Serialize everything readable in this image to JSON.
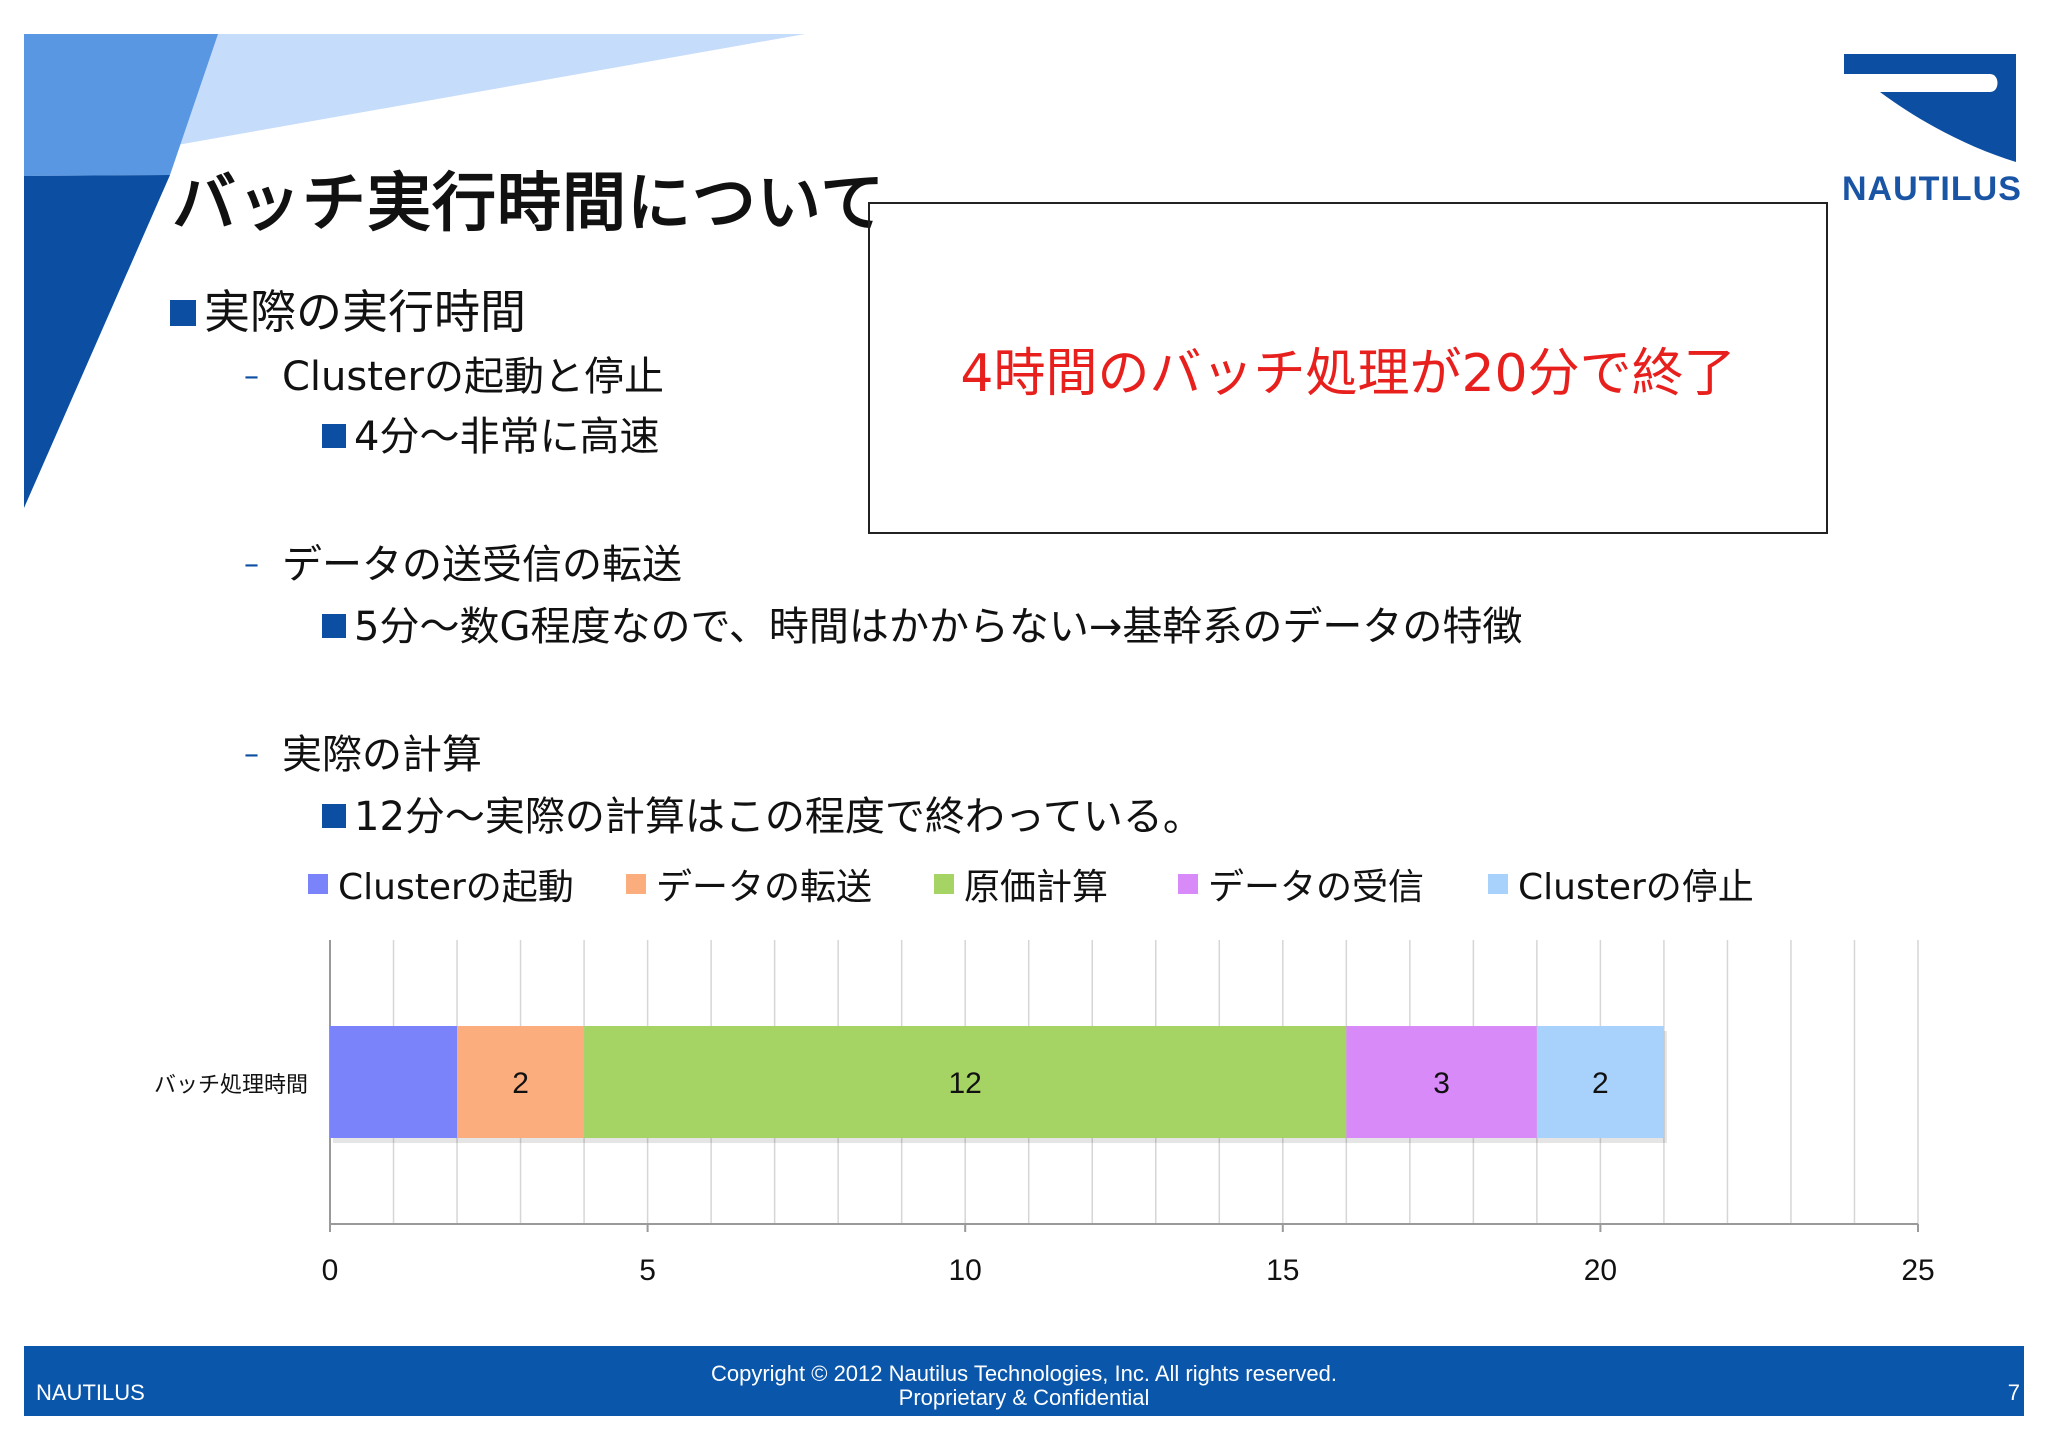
{
  "slide": {
    "title": "バッチ実行時間について",
    "logo_text": "NAUTILUS",
    "colors": {
      "brand": "#0b4ea2",
      "accent_red": "#e8201d",
      "footer": "#0a56ab"
    }
  },
  "bullets": {
    "b1": "実際の実行時間",
    "s1": "Clusterの起動と停止",
    "s1a": "4分～非常に高速",
    "s2": "データの送受信の転送",
    "s2a": "5分～数G程度なので、時間はかからない→基幹系のデータの特徴",
    "s3": "実際の計算",
    "s3a": "12分～実際の計算はこの程度で終わっている。"
  },
  "callout": {
    "text": "4時間のバッチ処理が20分で終了"
  },
  "chart_data": {
    "type": "bar",
    "orientation": "horizontal",
    "stacked": true,
    "categories": [
      "バッチ処理時間"
    ],
    "series": [
      {
        "name": "Clusterの起動",
        "values": [
          2
        ],
        "color": "#7b83fa",
        "label": ""
      },
      {
        "name": "データの転送",
        "values": [
          2
        ],
        "color": "#fbad7e",
        "label": "2"
      },
      {
        "name": "原価計算",
        "values": [
          12
        ],
        "color": "#a5d464",
        "label": "12"
      },
      {
        "name": "データの受信",
        "values": [
          3
        ],
        "color": "#d98af9",
        "label": "3"
      },
      {
        "name": "Clusterの停止",
        "values": [
          2
        ],
        "color": "#a8d2fb",
        "label": "2"
      }
    ],
    "xlim": [
      0,
      25
    ],
    "xticks": [
      0,
      5,
      10,
      15,
      20,
      25
    ],
    "xticklabels": [
      "0",
      "5",
      "10",
      "15",
      "20",
      "25"
    ],
    "grid": true,
    "legend": "top"
  },
  "footer": {
    "left": "NAUTILUS",
    "copyright": "Copyright © 2012 Nautilus Technologies, Inc. All rights reserved.",
    "confidential": "Proprietary & Confidential",
    "page": "7"
  }
}
